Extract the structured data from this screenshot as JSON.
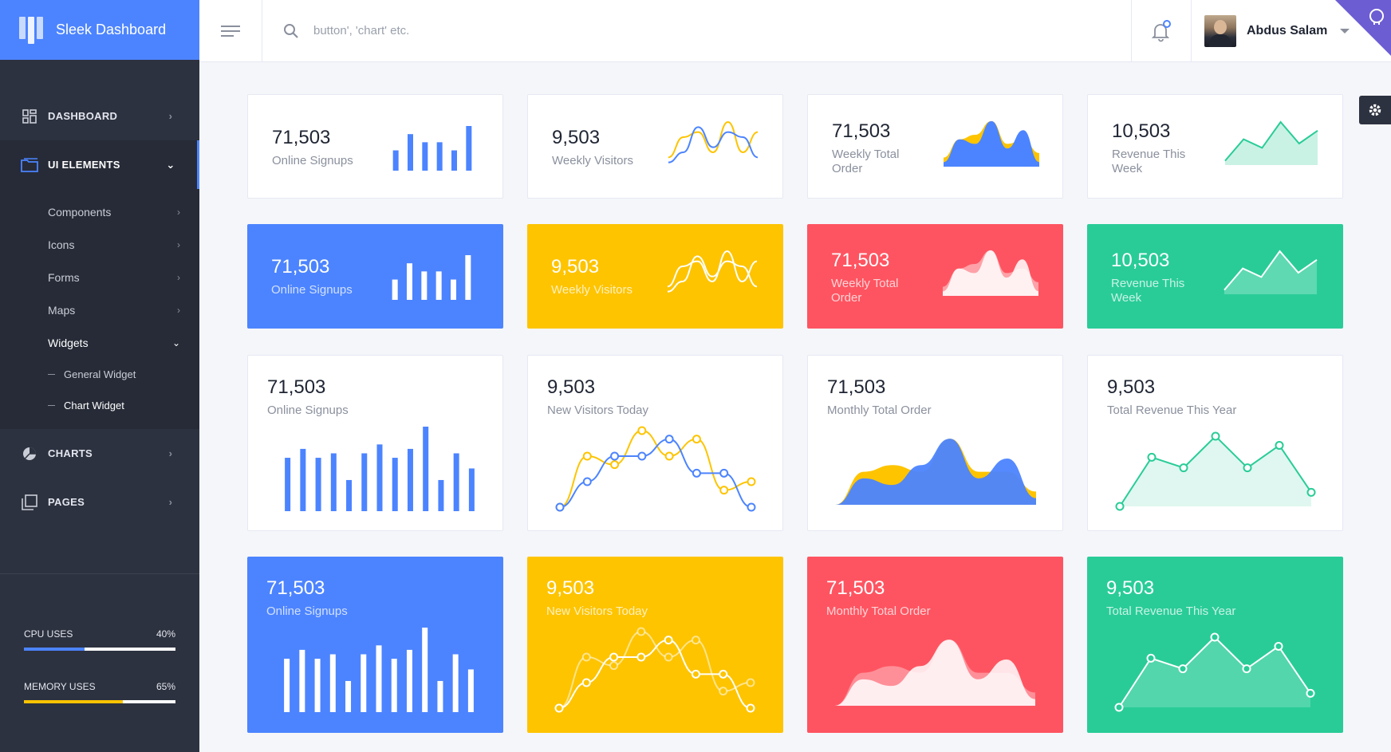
{
  "app": {
    "title": "Sleek Dashboard"
  },
  "sidebar": {
    "items": [
      {
        "label": "DASHBOARD",
        "icon": "dashboard-icon"
      },
      {
        "label": "UI ELEMENTS",
        "icon": "ui-elements-icon",
        "active": true
      },
      {
        "label": "CHARTS",
        "icon": "pie-chart-icon"
      },
      {
        "label": "PAGES",
        "icon": "pages-icon"
      }
    ],
    "ui_elements": [
      "Components",
      "Icons",
      "Forms",
      "Maps",
      "Widgets"
    ],
    "widgets": [
      "General Widget",
      "Chart Widget"
    ],
    "usage": [
      {
        "label": "CPU USES",
        "value": "40%",
        "fraction": 0.4,
        "color": "#4c84ff"
      },
      {
        "label": "MEMORY USES",
        "value": "65%",
        "fraction": 0.65,
        "color": "#fec400"
      }
    ]
  },
  "header": {
    "search_placeholder": "button', 'chart' etc.",
    "user_name": "Abdus Salam"
  },
  "colors": {
    "primary": "#4c84ff",
    "warning": "#fec400",
    "danger": "#fe5461",
    "success": "#29cc97"
  },
  "cards": {
    "row1": [
      {
        "value": "71,503",
        "label": "Online Signups"
      },
      {
        "value": "9,503",
        "label": "Weekly Visitors"
      },
      {
        "value": "71,503",
        "label": "Weekly Total Order"
      },
      {
        "value": "10,503",
        "label": "Revenue This Week"
      }
    ],
    "row2": [
      {
        "value": "71,503",
        "label": "Online Signups"
      },
      {
        "value": "9,503",
        "label": "Weekly Visitors"
      },
      {
        "value": "71,503",
        "label": "Weekly Total Order"
      },
      {
        "value": "10,503",
        "label": "Revenue This Week"
      }
    ],
    "row3": [
      {
        "value": "71,503",
        "label": "Online Signups"
      },
      {
        "value": "9,503",
        "label": "New Visitors Today"
      },
      {
        "value": "71,503",
        "label": "Monthly Total Order"
      },
      {
        "value": "9,503",
        "label": "Total Revenue This Year"
      }
    ],
    "row4": [
      {
        "value": "71,503",
        "label": "Online Signups"
      },
      {
        "value": "9,503",
        "label": "New Visitors Today"
      },
      {
        "value": "71,503",
        "label": "Monthly Total Order"
      },
      {
        "value": "9,503",
        "label": "Total Revenue This Year"
      }
    ]
  },
  "chart_data": [
    {
      "type": "bar",
      "id": "mini-bar",
      "values": [
        5,
        9,
        7,
        7,
        5,
        11
      ]
    },
    {
      "type": "line",
      "id": "mini-lines",
      "series": [
        {
          "values": [
            2,
            6,
            7,
            3,
            9,
            3,
            7
          ]
        },
        {
          "values": [
            1,
            3,
            8,
            4,
            7,
            6,
            2
          ]
        }
      ]
    },
    {
      "type": "area",
      "id": "mini-area",
      "series": [
        {
          "values": [
            2,
            6,
            7,
            10,
            5,
            6,
            3
          ]
        },
        {
          "values": [
            1,
            6,
            5,
            10,
            4,
            8,
            1
          ]
        }
      ]
    },
    {
      "type": "area",
      "id": "mini-revenue",
      "values": [
        1,
        6,
        4,
        10,
        5,
        8
      ]
    },
    {
      "type": "bar",
      "id": "large-bar",
      "values": [
        6,
        7,
        6,
        6.5,
        3.5,
        6.5,
        7.5,
        6,
        7,
        9.5,
        3.5,
        6.5,
        4.8
      ]
    },
    {
      "type": "line",
      "id": "large-lines",
      "series": [
        {
          "values": [
            0,
            6,
            5,
            9,
            6,
            8,
            2,
            3
          ]
        },
        {
          "values": [
            0,
            3,
            6,
            6,
            8,
            4,
            4,
            0
          ]
        }
      ]
    },
    {
      "type": "area",
      "id": "large-area",
      "series": [
        {
          "values": [
            0,
            5,
            6,
            5,
            10,
            5,
            5,
            2
          ]
        },
        {
          "values": [
            0,
            4,
            3,
            6,
            10,
            4,
            7,
            1
          ]
        }
      ]
    },
    {
      "type": "line",
      "id": "large-revenue",
      "values": [
        0,
        7,
        5.5,
        10,
        5.5,
        8.7,
        2
      ]
    }
  ]
}
